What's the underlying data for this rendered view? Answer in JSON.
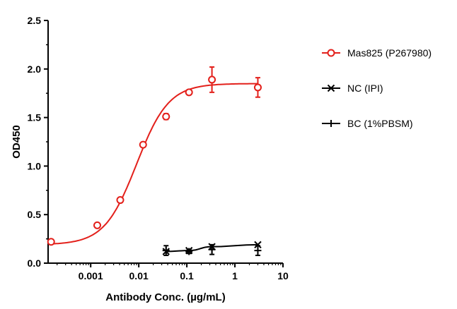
{
  "chart_data": {
    "type": "scatter",
    "xlabel": "Antibody Conc. (µg/mL)",
    "ylabel": "OD450",
    "xscale": "log",
    "xlim": [
      0.00013,
      10
    ],
    "ylim": [
      0,
      2.5
    ],
    "x_tick_labels": [
      "0.001",
      "0.01",
      "0.1",
      "1",
      "10"
    ],
    "x_tick_values": [
      0.001,
      0.01,
      0.1,
      1,
      10
    ],
    "y_tick_labels": [
      "0.0",
      "0.5",
      "1.0",
      "1.5",
      "2.0",
      "2.5"
    ],
    "y_tick_values": [
      0,
      0.5,
      1.0,
      1.5,
      2.0,
      2.5
    ],
    "legend_position": "right",
    "grid": false,
    "series": [
      {
        "name": "Mas825 (P267980)",
        "color": "#e3201b",
        "marker": "open-circle",
        "fit": "sigmoid",
        "fit_params": {
          "bottom": 0.19,
          "top": 1.85,
          "ec50": 0.009,
          "hill": 1.3
        },
        "points": [
          {
            "x": 0.00015,
            "y": 0.22,
            "err": 0
          },
          {
            "x": 0.00137,
            "y": 0.39,
            "err": 0
          },
          {
            "x": 0.00412,
            "y": 0.65,
            "err": 0
          },
          {
            "x": 0.0123,
            "y": 1.22,
            "err": 0
          },
          {
            "x": 0.037,
            "y": 1.51,
            "err": 0.03
          },
          {
            "x": 0.111,
            "y": 1.76,
            "err": 0
          },
          {
            "x": 0.333,
            "y": 1.89,
            "err": 0.13
          },
          {
            "x": 3.0,
            "y": 1.81,
            "err": 0.1
          }
        ]
      },
      {
        "name": "NC (IPI)",
        "color": "#000000",
        "marker": "x",
        "fit": "line",
        "points": [
          {
            "x": 0.037,
            "y": 0.12,
            "err": 0
          },
          {
            "x": 0.111,
            "y": 0.13,
            "err": 0
          },
          {
            "x": 0.333,
            "y": 0.17,
            "err": 0
          },
          {
            "x": 3.0,
            "y": 0.19,
            "err": 0
          }
        ]
      },
      {
        "name": "BC (1%PBSM)",
        "color": "#000000",
        "marker": "plus",
        "fit": "none",
        "points": [
          {
            "x": 0.037,
            "y": 0.13,
            "err": 0.05
          },
          {
            "x": 0.111,
            "y": 0.12,
            "err": 0.02
          },
          {
            "x": 0.333,
            "y": 0.14,
            "err": 0.05
          },
          {
            "x": 3.0,
            "y": 0.13,
            "err": 0.05
          }
        ]
      }
    ]
  }
}
